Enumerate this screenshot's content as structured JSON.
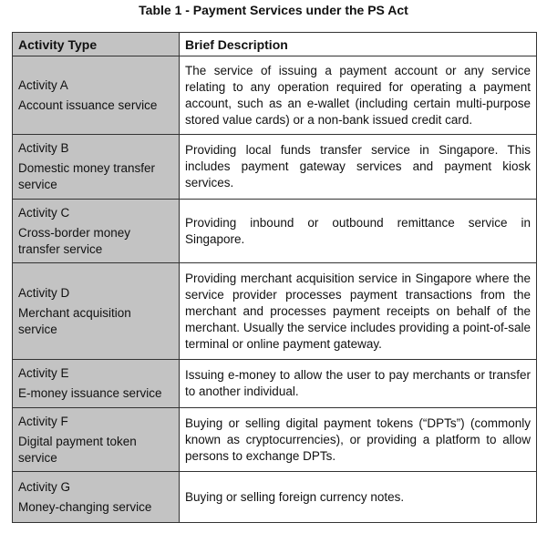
{
  "title": "Table 1 - Payment Services under the PS Act",
  "headers": {
    "type": "Activity Type",
    "description": "Brief Description"
  },
  "rows": [
    {
      "activity": "Activity A",
      "name": "Account issuance service",
      "description": "The service of issuing a payment account or any service relating to any operation required for operating a payment account, such as an e-wallet (including certain multi-purpose stored value cards) or a non-bank issued credit card."
    },
    {
      "activity": "Activity B",
      "name": "Domestic money transfer service",
      "description": "Providing local funds transfer service in Singapore. This includes payment gateway services and payment kiosk services."
    },
    {
      "activity": "Activity C",
      "name": "Cross-border money transfer service",
      "description": "Providing inbound or outbound remittance service in Singapore."
    },
    {
      "activity": "Activity D",
      "name": "Merchant acquisition service",
      "description": "Providing merchant acquisition service in Singapore where the service provider processes payment transactions from the merchant and processes payment receipts on behalf of the merchant. Usually the service includes providing a point-of-sale terminal or online payment gateway."
    },
    {
      "activity": "Activity E",
      "name": "E-money issuance service",
      "description": "Issuing e-money to allow the user to pay merchants or transfer to another individual."
    },
    {
      "activity": "Activity F",
      "name": "Digital payment token service",
      "description": "Buying or selling digital payment tokens (“DPTs”) (commonly known as cryptocurrencies), or providing a platform to allow persons to exchange DPTs."
    },
    {
      "activity": "Activity G",
      "name": "Money-changing service",
      "description": "Buying or selling foreign currency notes."
    }
  ]
}
